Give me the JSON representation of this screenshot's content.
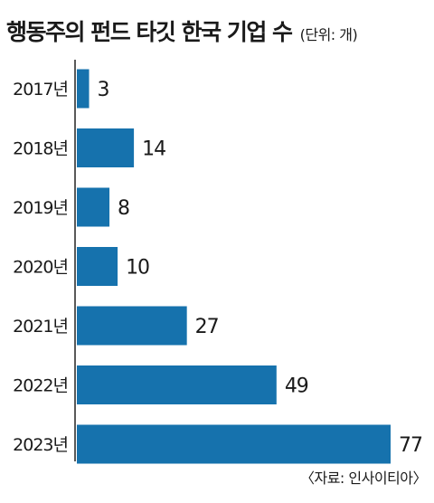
{
  "header": {
    "title": "행동주의 펀드 타깃 한국 기업 수",
    "unit": "(단위: 개)"
  },
  "footer": {
    "source": "〈자료: 인사이티아〉"
  },
  "colors": {
    "bar": "#1672ad",
    "axis": "#222222",
    "text": "#1a1a1a"
  },
  "chart_data": {
    "type": "bar",
    "orientation": "horizontal",
    "title": "행동주의 펀드 타깃 한국 기업 수",
    "unit": "(단위: 개)",
    "categories": [
      "2017년",
      "2018년",
      "2019년",
      "2020년",
      "2021년",
      "2022년",
      "2023년"
    ],
    "values": [
      3,
      14,
      8,
      10,
      27,
      49,
      77
    ],
    "data_labels": [
      "3",
      "14",
      "8",
      "10",
      "27",
      "49",
      "77"
    ],
    "xlim": [
      0,
      80
    ],
    "grid": false,
    "legend": "none"
  }
}
